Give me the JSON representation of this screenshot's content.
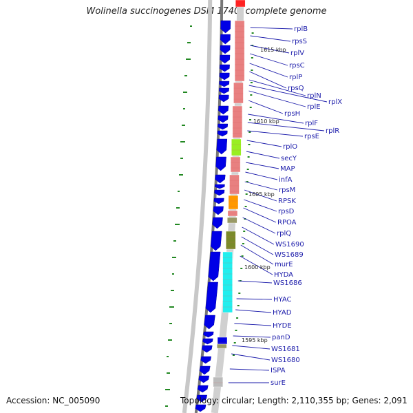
{
  "title": "Wolinella succinogenes DSM 1740, complete genome",
  "footer": {
    "accession_label": "Accession:",
    "accession": "NC_005090",
    "topology_label": "Topology:",
    "topology": "circular;",
    "length_label": "Length:",
    "length": "2,110,355 bp;",
    "genes_label": "Genes:",
    "genes": "2,091"
  },
  "scale_labels": [
    "1615 kbp",
    "1610 kbp",
    "1605 kbp",
    "1600 kbp",
    "1595 kbp"
  ],
  "genes": [
    "rplB",
    "rpsS",
    "rplV",
    "rpsC",
    "rplP",
    "rpsQ",
    "rplN",
    "rplX",
    "rplE",
    "rpsH",
    "rplF",
    "rplR",
    "rpsE",
    "rplO",
    "secY",
    "MAP",
    "infA",
    "rpsM",
    "RPSK",
    "rpsD",
    "RPOA",
    "rplQ",
    "WS1690",
    "WS1689",
    "murE",
    "HYDA",
    "WS1686",
    "HYAC",
    "HYAD",
    "HYDE",
    "panD",
    "WS1681",
    "WS1680",
    "ISPA",
    "surE"
  ],
  "colors": {
    "gene_arrow": "#0000e6",
    "cog_red": "#e88080",
    "cog_green": "#99ee22",
    "cog_orange": "#ff9900",
    "cog_olive": "#7a8a2a",
    "cog_cyan": "#22eeee",
    "cog_brown": "#999966",
    "backbone": "#888888",
    "gc_skew": "#228822",
    "label": "#1a1aaa"
  }
}
